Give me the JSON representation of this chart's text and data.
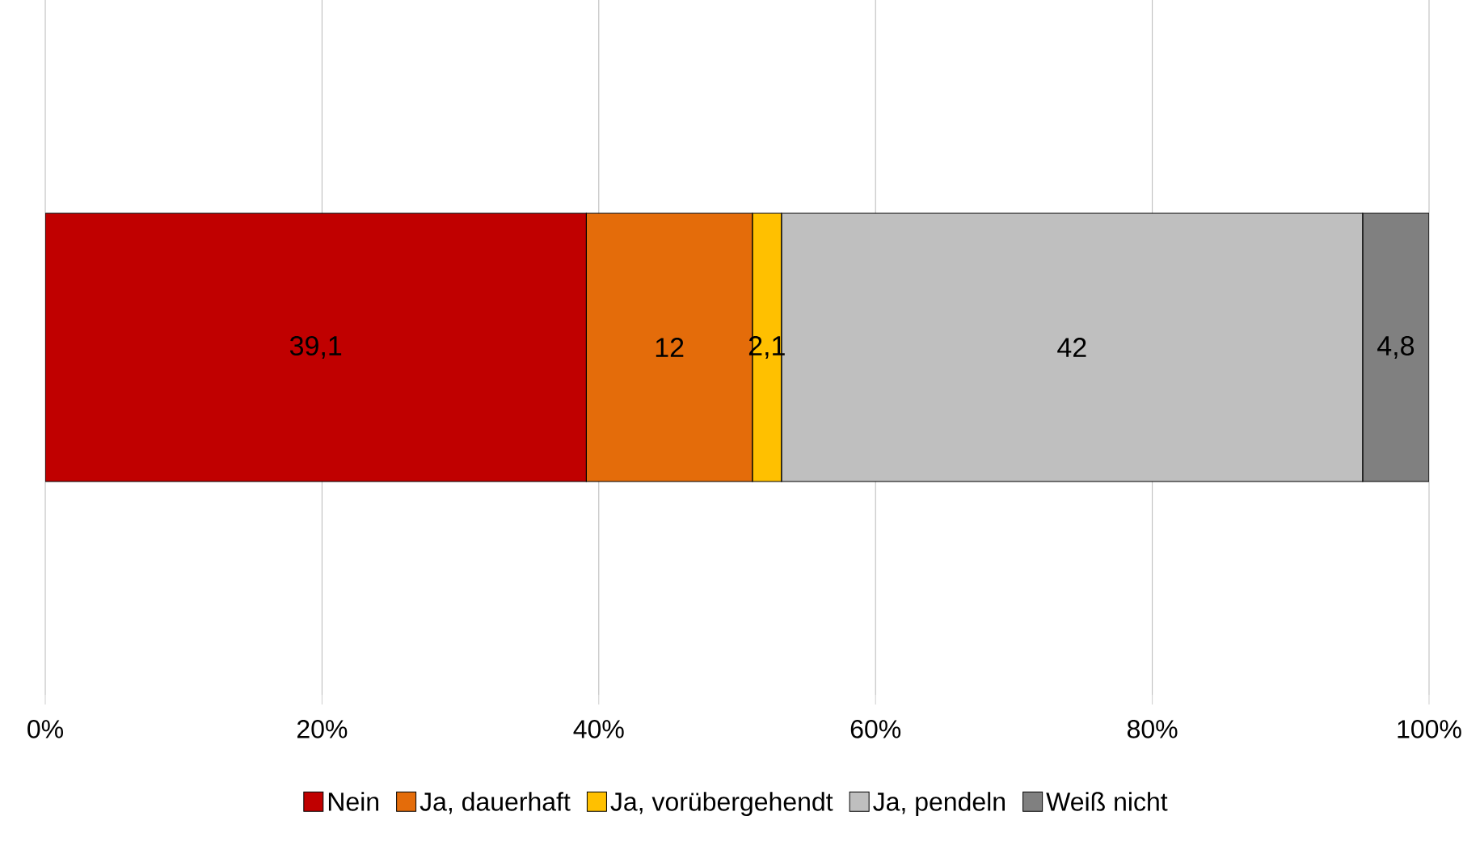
{
  "chart_data": {
    "type": "bar",
    "orientation": "horizontal",
    "stacked": true,
    "categories": [
      null
    ],
    "series": [
      {
        "name": "Nein",
        "color": "#c00000",
        "values": [
          39.1
        ],
        "value_labels": [
          "39,1"
        ]
      },
      {
        "name": "Ja, dauerhaft",
        "color": "#e46c0a",
        "values": [
          12
        ],
        "value_labels": [
          "12"
        ]
      },
      {
        "name": "Ja, vorübergehendt",
        "color": "#ffc000",
        "values": [
          2.1
        ],
        "value_labels": [
          "2,1"
        ]
      },
      {
        "name": "Ja, pendeln",
        "color": "#bfbfbf",
        "values": [
          42
        ],
        "value_labels": [
          "42"
        ]
      },
      {
        "name": "Weiß nicht",
        "color": "#808080",
        "values": [
          4.8
        ],
        "value_labels": [
          "4,8"
        ]
      }
    ],
    "xlim": [
      0,
      100
    ],
    "xticks": [
      {
        "value": 0,
        "label": "0%"
      },
      {
        "value": 20,
        "label": "20%"
      },
      {
        "value": 40,
        "label": "40%"
      },
      {
        "value": 60,
        "label": "60%"
      },
      {
        "value": 80,
        "label": "80%"
      },
      {
        "value": 100,
        "label": "100%"
      }
    ],
    "grid": "x",
    "legend": "bottom"
  }
}
